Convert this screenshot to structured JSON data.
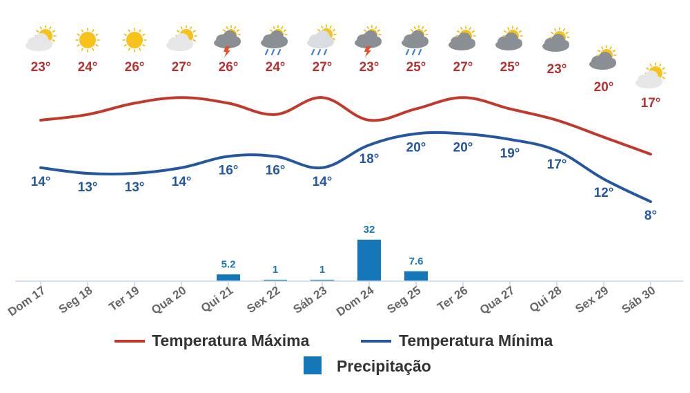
{
  "chart_data": {
    "type": "line",
    "categories": [
      "Dom 17",
      "Seg 18",
      "Ter 19",
      "Qua 20",
      "Qui 21",
      "Sex 22",
      "Sáb 23",
      "Dom 24",
      "Seg 25",
      "Ter 26",
      "Qua 27",
      "Qui 28",
      "Sex 29",
      "Sáb 30"
    ],
    "weather_icons": [
      "sun-cloud-icon",
      "sun-icon",
      "sun-icon",
      "sun-cloud-icon",
      "thunderstorm-icon",
      "rain-icon",
      "sun-rain-icon",
      "thunderstorm-icon",
      "rain-icon",
      "cloudy-sun-icon",
      "cloudy-sun-icon",
      "cloudy-sun-icon",
      "cloudy-sun-icon",
      "sun-cloud-icon"
    ],
    "series": [
      {
        "name": "Temperatura Máxima",
        "type": "line",
        "color": "#c0392b",
        "values": [
          23,
          24,
          26,
          27,
          26,
          24,
          27,
          23,
          25,
          27,
          25,
          23,
          20,
          17
        ],
        "labels": [
          "23°",
          "24°",
          "26°",
          "27°",
          "26°",
          "24°",
          "27°",
          "23°",
          "25°",
          "27°",
          "25°",
          "23°",
          "20°",
          "17°"
        ]
      },
      {
        "name": "Temperatura Mínima",
        "type": "line",
        "color": "#2457a0",
        "values": [
          14,
          13,
          13,
          14,
          16,
          16,
          14,
          18,
          20,
          20,
          19,
          17,
          12,
          8
        ],
        "labels": [
          "14°",
          "13°",
          "13°",
          "14°",
          "16°",
          "16°",
          "14°",
          "18°",
          "20°",
          "20°",
          "19°",
          "17°",
          "12°",
          "8°"
        ]
      },
      {
        "name": "Precipitação",
        "type": "bar",
        "color": "#1577b8",
        "values": [
          0,
          0,
          0,
          0,
          5.2,
          1,
          1,
          32,
          7.6,
          0,
          0,
          0,
          0,
          0
        ],
        "labels": [
          "",
          "",
          "",
          "",
          "5.2",
          "1",
          "1",
          "32",
          "7.6",
          "",
          "",
          "",
          "",
          ""
        ]
      }
    ],
    "grid": false,
    "legend_placement": "bottom"
  }
}
